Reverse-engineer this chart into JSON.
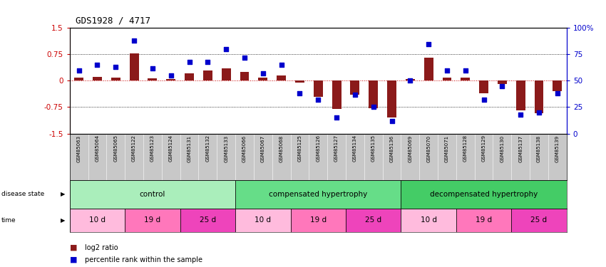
{
  "title": "GDS1928 / 4717",
  "samples": [
    "GSM85063",
    "GSM85064",
    "GSM85065",
    "GSM85122",
    "GSM85123",
    "GSM85124",
    "GSM85131",
    "GSM85132",
    "GSM85133",
    "GSM85066",
    "GSM85067",
    "GSM85068",
    "GSM85125",
    "GSM85126",
    "GSM85127",
    "GSM85134",
    "GSM85135",
    "GSM85136",
    "GSM85069",
    "GSM85070",
    "GSM85071",
    "GSM85128",
    "GSM85129",
    "GSM85130",
    "GSM85137",
    "GSM85138",
    "GSM85139"
  ],
  "log2_ratio": [
    0.08,
    0.12,
    0.1,
    0.78,
    0.07,
    0.05,
    0.22,
    0.3,
    0.35,
    0.25,
    0.08,
    0.15,
    -0.05,
    -0.45,
    -0.8,
    -0.4,
    -0.78,
    -1.05,
    0.05,
    0.65,
    0.1,
    0.08,
    -0.35,
    -0.1,
    -0.85,
    -0.92,
    -0.3
  ],
  "percentile": [
    60,
    65,
    63,
    88,
    62,
    55,
    68,
    68,
    80,
    72,
    57,
    65,
    38,
    32,
    15,
    37,
    25,
    12,
    50,
    85,
    60,
    60,
    32,
    45,
    18,
    20,
    38
  ],
  "disease_groups": [
    {
      "label": "control",
      "start": 0,
      "end": 9,
      "color": "#AAEEBB"
    },
    {
      "label": "compensated hypertrophy",
      "start": 9,
      "end": 18,
      "color": "#66DD88"
    },
    {
      "label": "decompensated hypertrophy",
      "start": 18,
      "end": 27,
      "color": "#44CC66"
    }
  ],
  "time_groups": [
    {
      "label": "10 d",
      "start": 0,
      "end": 3,
      "color": "#FFBBDD"
    },
    {
      "label": "19 d",
      "start": 3,
      "end": 6,
      "color": "#FF77BB"
    },
    {
      "label": "25 d",
      "start": 6,
      "end": 9,
      "color": "#EE44BB"
    },
    {
      "label": "10 d",
      "start": 9,
      "end": 12,
      "color": "#FFBBDD"
    },
    {
      "label": "19 d",
      "start": 12,
      "end": 15,
      "color": "#FF77BB"
    },
    {
      "label": "25 d",
      "start": 15,
      "end": 18,
      "color": "#EE44BB"
    },
    {
      "label": "10 d",
      "start": 18,
      "end": 21,
      "color": "#FFBBDD"
    },
    {
      "label": "19 d",
      "start": 21,
      "end": 24,
      "color": "#FF77BB"
    },
    {
      "label": "25 d",
      "start": 24,
      "end": 27,
      "color": "#EE44BB"
    }
  ],
  "bar_color": "#8B1A1A",
  "dot_color": "#0000CC",
  "ylim_left": [
    -1.5,
    1.5
  ],
  "ylim_right": [
    0,
    100
  ],
  "yticks_left": [
    -1.5,
    -0.75,
    0,
    0.75,
    1.5
  ],
  "yticks_right": [
    0,
    25,
    50,
    75,
    100
  ],
  "left_tick_color": "#CC0000",
  "right_tick_color": "#0000CC",
  "background_color": "#ffffff"
}
